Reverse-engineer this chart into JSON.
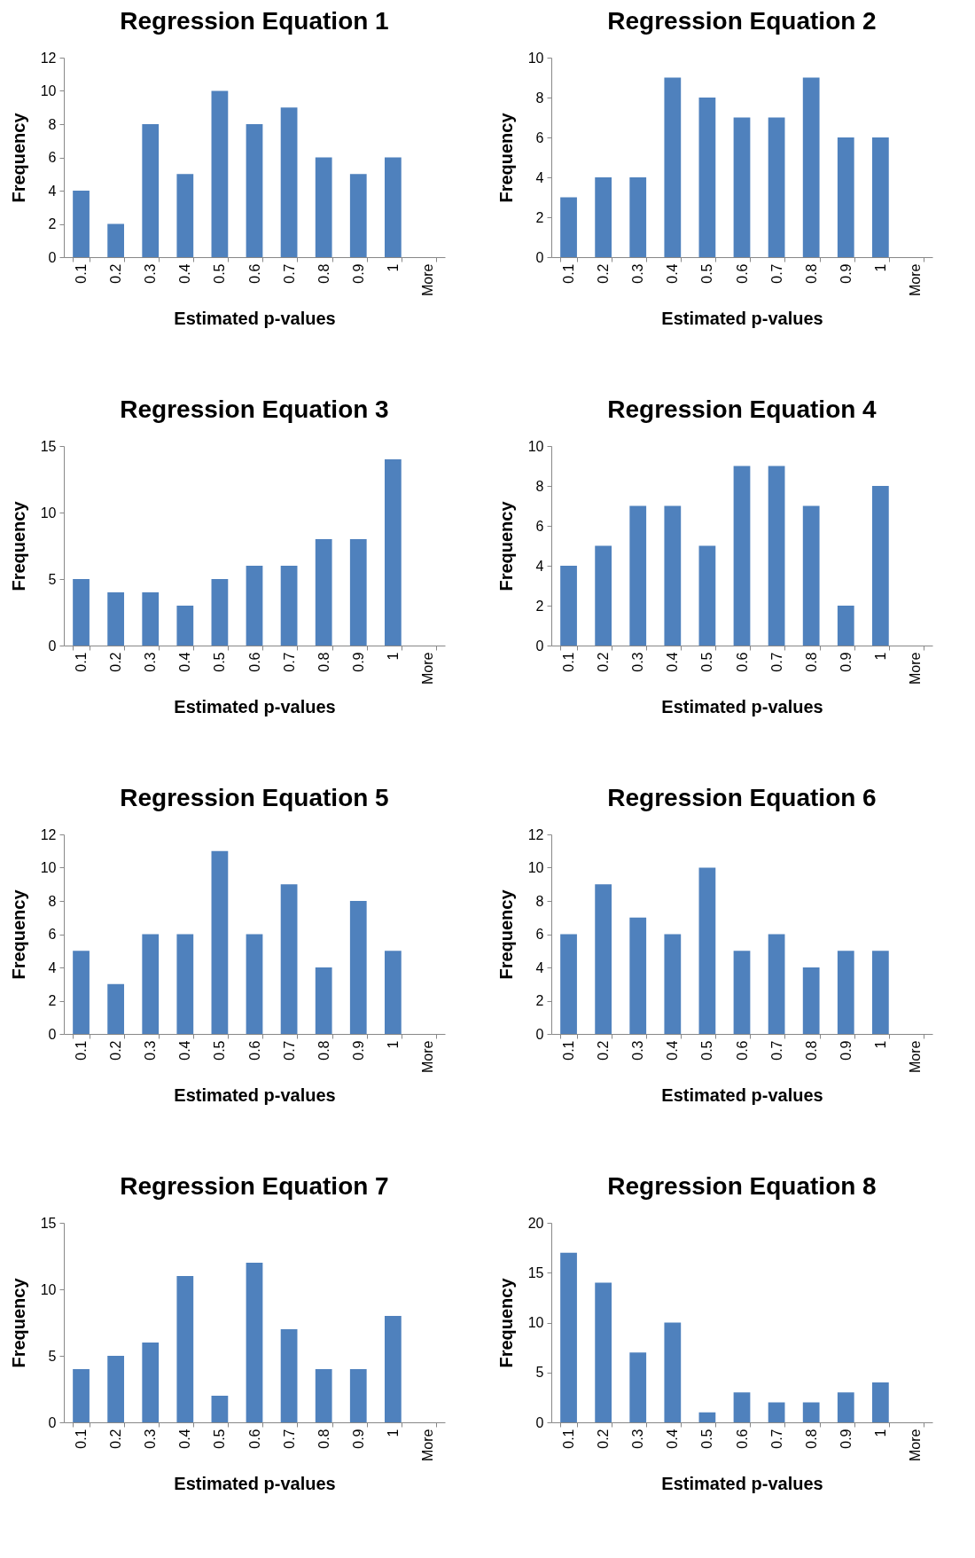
{
  "chart_data": [
    {
      "type": "bar",
      "title": "Regression Equation 1",
      "xlabel": "Estimated p-values",
      "ylabel": "Frequency",
      "categories": [
        "0.1",
        "0.2",
        "0.3",
        "0.4",
        "0.5",
        "0.6",
        "0.7",
        "0.8",
        "0.9",
        "1",
        "More"
      ],
      "values": [
        4,
        2,
        8,
        5,
        10,
        8,
        9,
        6,
        5,
        6,
        0
      ],
      "color": "#4f81bd",
      "ylim": [
        0,
        12
      ],
      "yticks": [
        0,
        2,
        4,
        6,
        8,
        10,
        12
      ],
      "grid": false
    },
    {
      "type": "bar",
      "title": "Regression Equation 2",
      "xlabel": "Estimated p-values",
      "ylabel": "Frequency",
      "categories": [
        "0.1",
        "0.2",
        "0.3",
        "0.4",
        "0.5",
        "0.6",
        "0.7",
        "0.8",
        "0.9",
        "1",
        "More"
      ],
      "values": [
        3,
        4,
        4,
        9,
        8,
        7,
        7,
        9,
        6,
        6,
        0
      ],
      "color": "#4f81bd",
      "ylim": [
        0,
        10
      ],
      "yticks": [
        0,
        2,
        4,
        6,
        8,
        10
      ],
      "grid": false
    },
    {
      "type": "bar",
      "title": "Regression Equation 3",
      "xlabel": "Estimated p-values",
      "ylabel": "Frequency",
      "categories": [
        "0.1",
        "0.2",
        "0.3",
        "0.4",
        "0.5",
        "0.6",
        "0.7",
        "0.8",
        "0.9",
        "1",
        "More"
      ],
      "values": [
        5,
        4,
        4,
        3,
        5,
        6,
        6,
        8,
        8,
        14,
        0
      ],
      "color": "#4f81bd",
      "ylim": [
        0,
        15
      ],
      "yticks": [
        0,
        5,
        10,
        15
      ],
      "grid": false
    },
    {
      "type": "bar",
      "title": "Regression Equation 4",
      "xlabel": "Estimated p-values",
      "ylabel": "Frequency",
      "categories": [
        "0.1",
        "0.2",
        "0.3",
        "0.4",
        "0.5",
        "0.6",
        "0.7",
        "0.8",
        "0.9",
        "1",
        "More"
      ],
      "values": [
        4,
        5,
        7,
        7,
        5,
        9,
        9,
        7,
        2,
        8,
        0
      ],
      "color": "#4f81bd",
      "ylim": [
        0,
        10
      ],
      "yticks": [
        0,
        2,
        4,
        6,
        8,
        10
      ],
      "grid": false
    },
    {
      "type": "bar",
      "title": "Regression Equation 5",
      "xlabel": "Estimated p-values",
      "ylabel": "Frequency",
      "categories": [
        "0.1",
        "0.2",
        "0.3",
        "0.4",
        "0.5",
        "0.6",
        "0.7",
        "0.8",
        "0.9",
        "1",
        "More"
      ],
      "values": [
        5,
        3,
        6,
        6,
        11,
        6,
        9,
        4,
        8,
        5,
        0
      ],
      "color": "#4f81bd",
      "ylim": [
        0,
        12
      ],
      "yticks": [
        0,
        2,
        4,
        6,
        8,
        10,
        12
      ],
      "grid": false
    },
    {
      "type": "bar",
      "title": "Regression Equation 6",
      "xlabel": "Estimated p-values",
      "ylabel": "Frequency",
      "categories": [
        "0.1",
        "0.2",
        "0.3",
        "0.4",
        "0.5",
        "0.6",
        "0.7",
        "0.8",
        "0.9",
        "1",
        "More"
      ],
      "values": [
        6,
        9,
        7,
        6,
        10,
        5,
        6,
        4,
        5,
        5,
        0
      ],
      "color": "#4f81bd",
      "ylim": [
        0,
        12
      ],
      "yticks": [
        0,
        2,
        4,
        6,
        8,
        10,
        12
      ],
      "grid": false
    },
    {
      "type": "bar",
      "title": "Regression Equation 7",
      "xlabel": "Estimated p-values",
      "ylabel": "Frequency",
      "categories": [
        "0.1",
        "0.2",
        "0.3",
        "0.4",
        "0.5",
        "0.6",
        "0.7",
        "0.8",
        "0.9",
        "1",
        "More"
      ],
      "values": [
        4,
        5,
        6,
        11,
        2,
        12,
        7,
        4,
        4,
        8,
        0
      ],
      "color": "#4f81bd",
      "ylim": [
        0,
        15
      ],
      "yticks": [
        0,
        5,
        10,
        15
      ],
      "grid": false
    },
    {
      "type": "bar",
      "title": "Regression Equation 8",
      "xlabel": "Estimated p-values",
      "ylabel": "Frequency",
      "categories": [
        "0.1",
        "0.2",
        "0.3",
        "0.4",
        "0.5",
        "0.6",
        "0.7",
        "0.8",
        "0.9",
        "1",
        "More"
      ],
      "values": [
        17,
        14,
        7,
        10,
        1,
        3,
        2,
        2,
        3,
        4,
        0
      ],
      "color": "#4f81bd",
      "ylim": [
        0,
        20
      ],
      "yticks": [
        0,
        5,
        10,
        15,
        20
      ],
      "grid": false
    }
  ]
}
